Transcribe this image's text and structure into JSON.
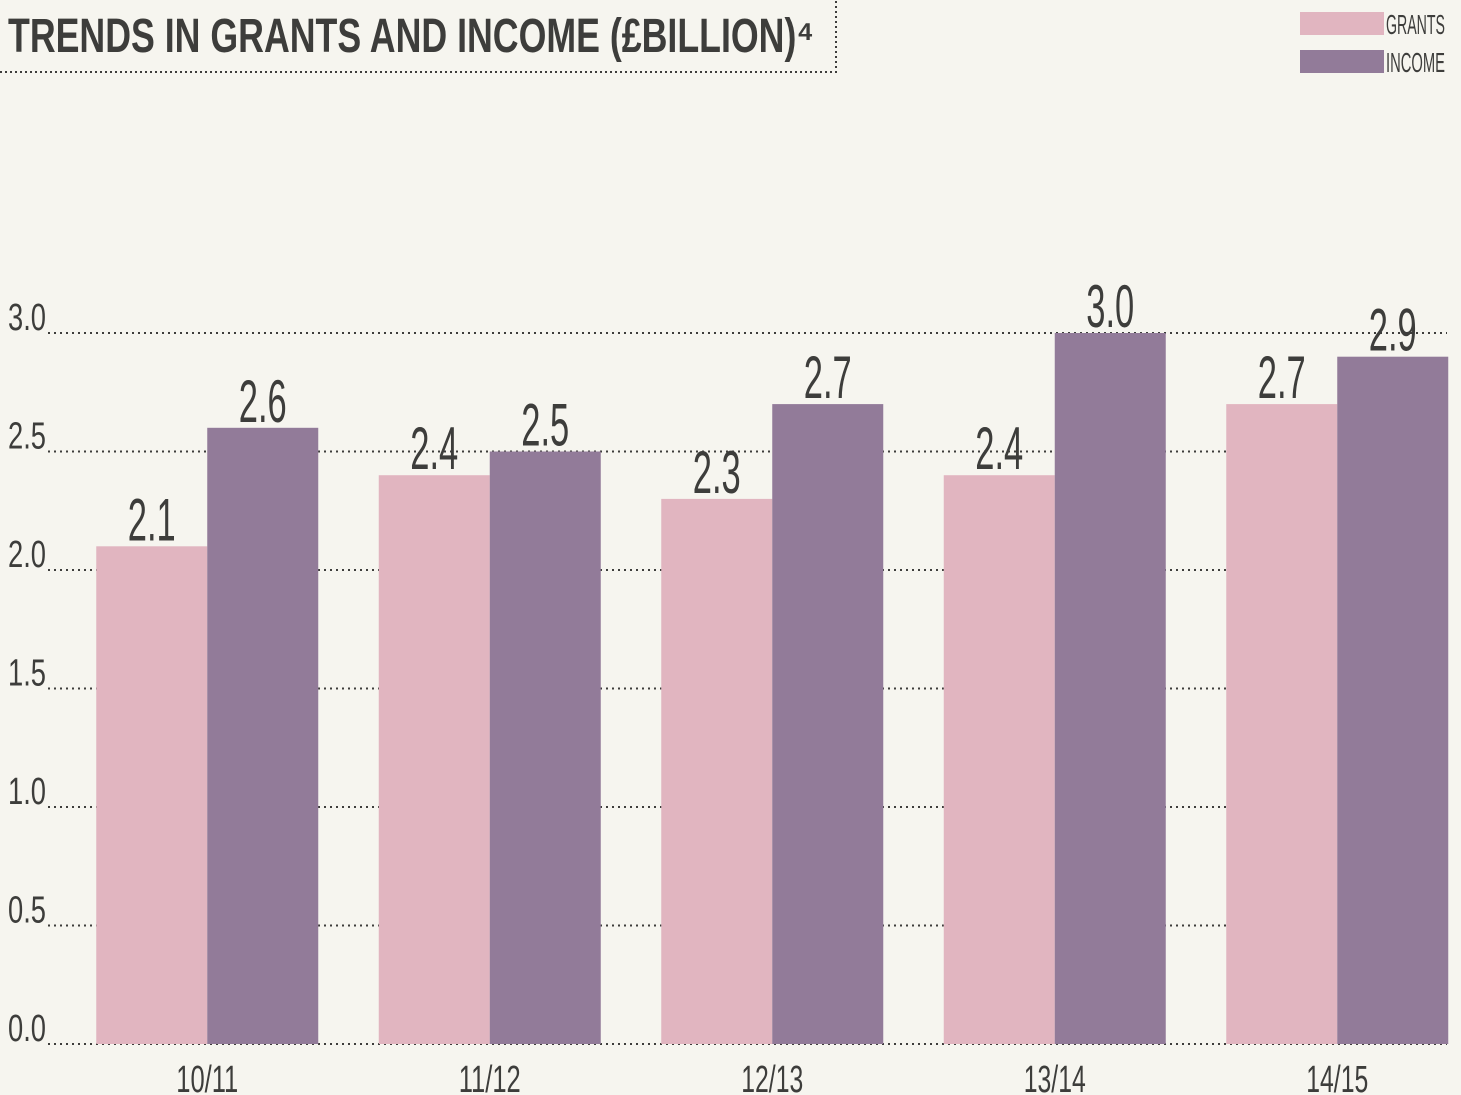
{
  "chart_data": {
    "type": "bar",
    "title": "TRENDS IN GRANTS AND INCOME (£BILLION)⁴",
    "categories": [
      "10/11",
      "11/12",
      "12/13",
      "13/14",
      "14/15"
    ],
    "series": [
      {
        "name": "GRANTS",
        "color": "#e1b5c0",
        "values": [
          2.1,
          2.4,
          2.3,
          2.4,
          2.7
        ]
      },
      {
        "name": "INCOME",
        "color": "#927b99",
        "values": [
          2.6,
          2.5,
          2.7,
          3.0,
          2.9
        ],
        "value_labels": [
          "2.6",
          "2.5",
          "2.7",
          "3.0",
          "2.9"
        ]
      }
    ],
    "ylim": [
      0,
      3
    ],
    "yticks": [
      {
        "value": 0,
        "label": "0.0"
      },
      0.5,
      {
        "value": 1,
        "label": "1.0"
      },
      1.5,
      {
        "value": 2,
        "label": "2.0"
      },
      2.5,
      {
        "value": 3,
        "label": "3.0"
      }
    ],
    "grid": true,
    "legend": "top-right"
  }
}
